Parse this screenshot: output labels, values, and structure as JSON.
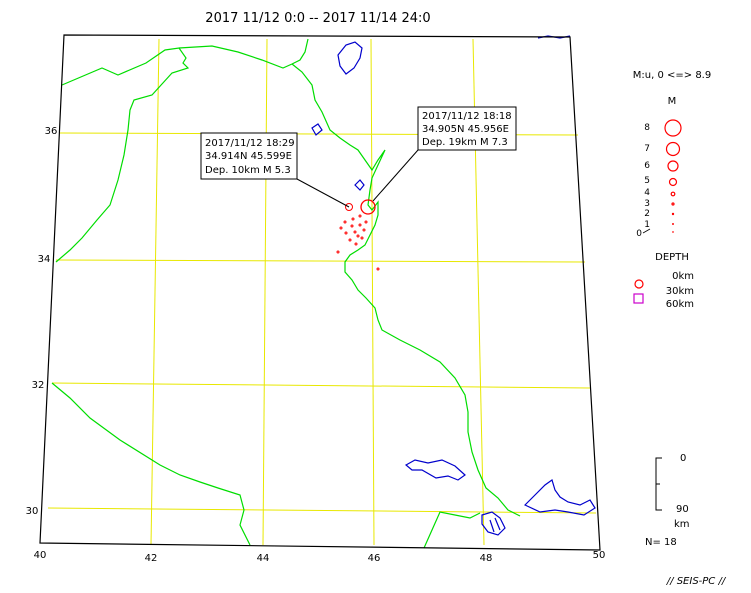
{
  "title": "2017 11/12 0:0 -- 2017 11/14 24:0",
  "map": {
    "lon_ticks": [
      "40",
      "42",
      "44",
      "46",
      "48",
      "50"
    ],
    "lat_ticks": [
      "30",
      "32",
      "34",
      "36"
    ],
    "colors": {
      "frame": "#000000",
      "grid": "#e8e800",
      "border": "#00dd00",
      "water": "#0000cc",
      "quake_shallow": "#ff0000",
      "quake_mid": "#cc00cc"
    }
  },
  "callouts": [
    {
      "line1": "2017/11/12 18:29",
      "line2": "34.914N  45.599E",
      "line3": "Dep. 10km    M 5.3"
    },
    {
      "line1": "2017/11/12 18:18",
      "line2": "34.905N  45.956E",
      "line3": "Dep. 19km    M 7.3"
    }
  ],
  "legend": {
    "scale_title": "M:u, 0 <=> 8.9",
    "mag_header": "M",
    "magnitudes": [
      "8",
      "7",
      "6",
      "5",
      "4",
      "3",
      "2",
      "1",
      "0"
    ],
    "depth_header": "DEPTH",
    "depths": [
      "0km",
      "30km",
      "60km"
    ],
    "depth_axis_top": "0",
    "depth_axis_bottom": "90",
    "depth_axis_unit": "km",
    "count": "N= 18"
  },
  "credit": "// SEIS-PC //"
}
